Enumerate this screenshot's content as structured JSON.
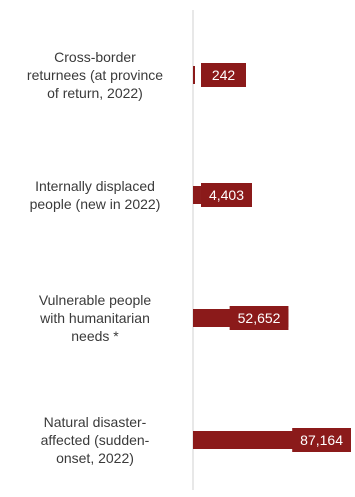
{
  "chart_data": {
    "type": "bar",
    "orientation": "horizontal",
    "categories": [
      [
        "Cross-border",
        "returnees (at province",
        "of return, 2022)"
      ],
      [
        "Internally displaced",
        "people (new in 2022)"
      ],
      [
        "Vulnerable people",
        "with humanitarian",
        "needs *"
      ],
      [
        "Natural disaster-",
        "affected (sudden-",
        "onset, 2022)"
      ]
    ],
    "values": [
      242,
      4403,
      52652,
      87164
    ],
    "value_labels": [
      "242",
      "4,403",
      "52,652",
      "87,164"
    ],
    "title": "",
    "xlabel": "",
    "ylabel": "",
    "xlim": [
      0,
      87164
    ],
    "grid": false,
    "legend": "none",
    "bar_color": "#8b1a1a",
    "axis_color": "#d0d0d0",
    "label_color": "#3a3a3a",
    "value_label_color": "#ffffff"
  }
}
